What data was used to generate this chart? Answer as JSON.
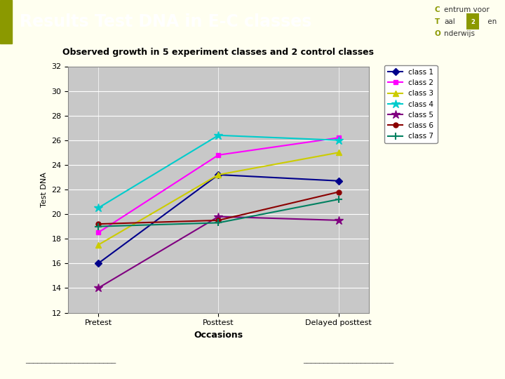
{
  "title": "Results Test DNA in E-C classes",
  "chart_title": "Observed growth in 5 experiment classes and 2 control classes",
  "xlabel": "Occasions",
  "ylabel": "Test DNA",
  "x_labels": [
    "Pretest",
    "Posttest",
    "Delayed posttest"
  ],
  "ylim": [
    12,
    32
  ],
  "yticks": [
    12,
    14,
    16,
    18,
    20,
    22,
    24,
    26,
    28,
    30,
    32
  ],
  "classes": [
    {
      "name": "class 1",
      "color": "#00008B",
      "marker": "D",
      "values": [
        16.0,
        23.2,
        22.7
      ]
    },
    {
      "name": "class 2",
      "color": "#FF00FF",
      "marker": "s",
      "values": [
        18.5,
        24.8,
        26.2
      ]
    },
    {
      "name": "class 3",
      "color": "#CCCC00",
      "marker": "^",
      "values": [
        17.5,
        23.2,
        25.0
      ]
    },
    {
      "name": "class 4",
      "color": "#00CCCC",
      "marker": "*",
      "values": [
        20.5,
        26.4,
        26.0
      ]
    },
    {
      "name": "class 5",
      "color": "#800080",
      "marker": "*",
      "values": [
        14.0,
        19.8,
        19.5
      ]
    },
    {
      "name": "class 6",
      "color": "#8B0000",
      "marker": "o",
      "values": [
        19.2,
        19.5,
        21.8
      ]
    },
    {
      "name": "class 7",
      "color": "#008060",
      "marker": "+",
      "values": [
        19.0,
        19.3,
        21.2
      ]
    }
  ],
  "header_bg": "#7B2D4E",
  "header_text_color": "#FFFFFF",
  "slide_bg": "#FFFFF0",
  "chart_bg": "#C8C8C8",
  "accent_color": "#8B9900",
  "logo_highlight": "#8B9900",
  "logo_text": "#333333"
}
